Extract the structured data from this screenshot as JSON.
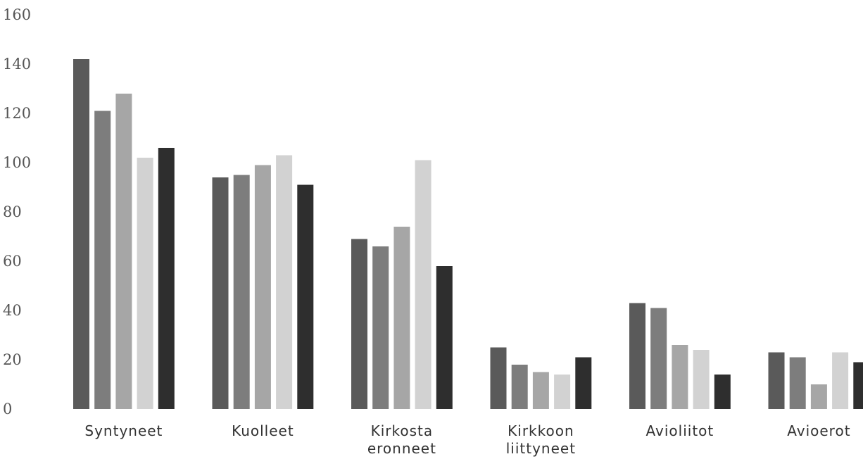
{
  "chart_data": {
    "type": "bar",
    "title": "",
    "xlabel": "",
    "ylabel": "",
    "ylim": [
      0,
      160
    ],
    "yticks": [
      0,
      20,
      40,
      60,
      80,
      100,
      120,
      140,
      160
    ],
    "grid": false,
    "legend": "none",
    "categories": [
      [
        "Syntyneet"
      ],
      [
        "Kuolleet"
      ],
      [
        "Kirkosta",
        "eronneet"
      ],
      [
        "Kirkkoon",
        "liittyneet"
      ],
      [
        "Avioliitot"
      ],
      [
        "Avioerot"
      ]
    ],
    "series": [
      {
        "color": "#5a5a5a",
        "values": [
          142,
          94,
          69,
          25,
          43,
          23
        ]
      },
      {
        "color": "#7d7d7d",
        "values": [
          121,
          95,
          66,
          18,
          41,
          21
        ]
      },
      {
        "color": "#a6a6a6",
        "values": [
          128,
          99,
          74,
          15,
          26,
          10
        ]
      },
      {
        "color": "#d2d2d2",
        "values": [
          102,
          103,
          101,
          14,
          24,
          23
        ]
      },
      {
        "color": "#2e2e2e",
        "values": [
          106,
          91,
          58,
          21,
          14,
          19
        ]
      }
    ]
  }
}
